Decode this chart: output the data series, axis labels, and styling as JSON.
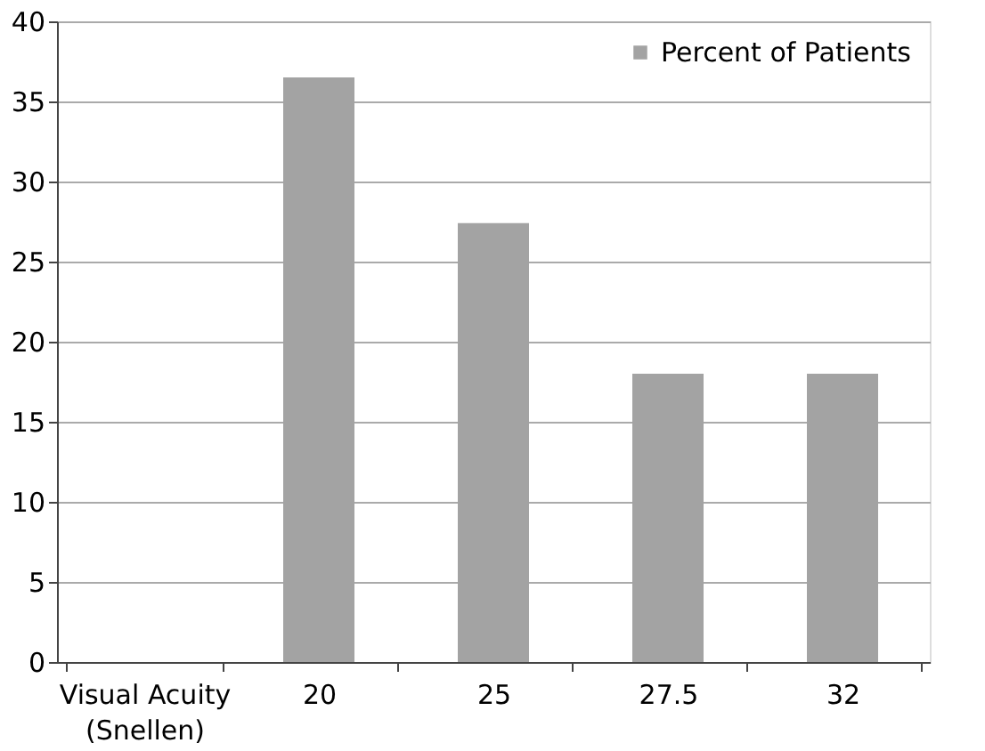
{
  "chart_data": {
    "type": "bar",
    "categories": [
      "Visual Acuity (Snellen)",
      "20",
      "25",
      "27.5",
      "32"
    ],
    "series": [
      {
        "name": "Percent of Patients",
        "color": "#a3a3a3",
        "values": [
          null,
          36.5,
          27.4,
          18,
          18
        ]
      }
    ],
    "ylim": [
      0,
      40
    ],
    "yticks": [
      0,
      5,
      10,
      15,
      20,
      25,
      30,
      35,
      40
    ],
    "grid": "y",
    "legend": "top right"
  }
}
